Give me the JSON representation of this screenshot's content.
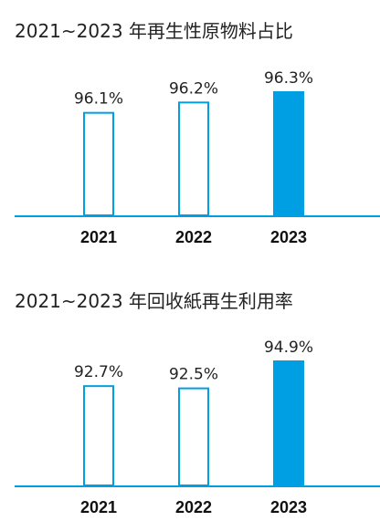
{
  "chart_data": [
    {
      "type": "bar",
      "title": "2021~2023 年再生性原物料占比",
      "categories": [
        "2021",
        "2022",
        "2023"
      ],
      "values": [
        96.1,
        96.2,
        96.3
      ],
      "value_labels": [
        "96.1%",
        "96.2%",
        "96.3%"
      ],
      "highlight": [
        false,
        false,
        true
      ],
      "xlabel": "",
      "ylabel": "",
      "grid": false,
      "accent_color": "#009fe3"
    },
    {
      "type": "bar",
      "title": "2021~2023 年回收紙再生利用率",
      "categories": [
        "2021",
        "2022",
        "2023"
      ],
      "values": [
        92.7,
        92.5,
        94.9
      ],
      "value_labels": [
        "92.7%",
        "92.5%",
        "94.9%"
      ],
      "highlight": [
        false,
        false,
        true
      ],
      "xlabel": "",
      "ylabel": "",
      "grid": false,
      "accent_color": "#009fe3"
    }
  ]
}
